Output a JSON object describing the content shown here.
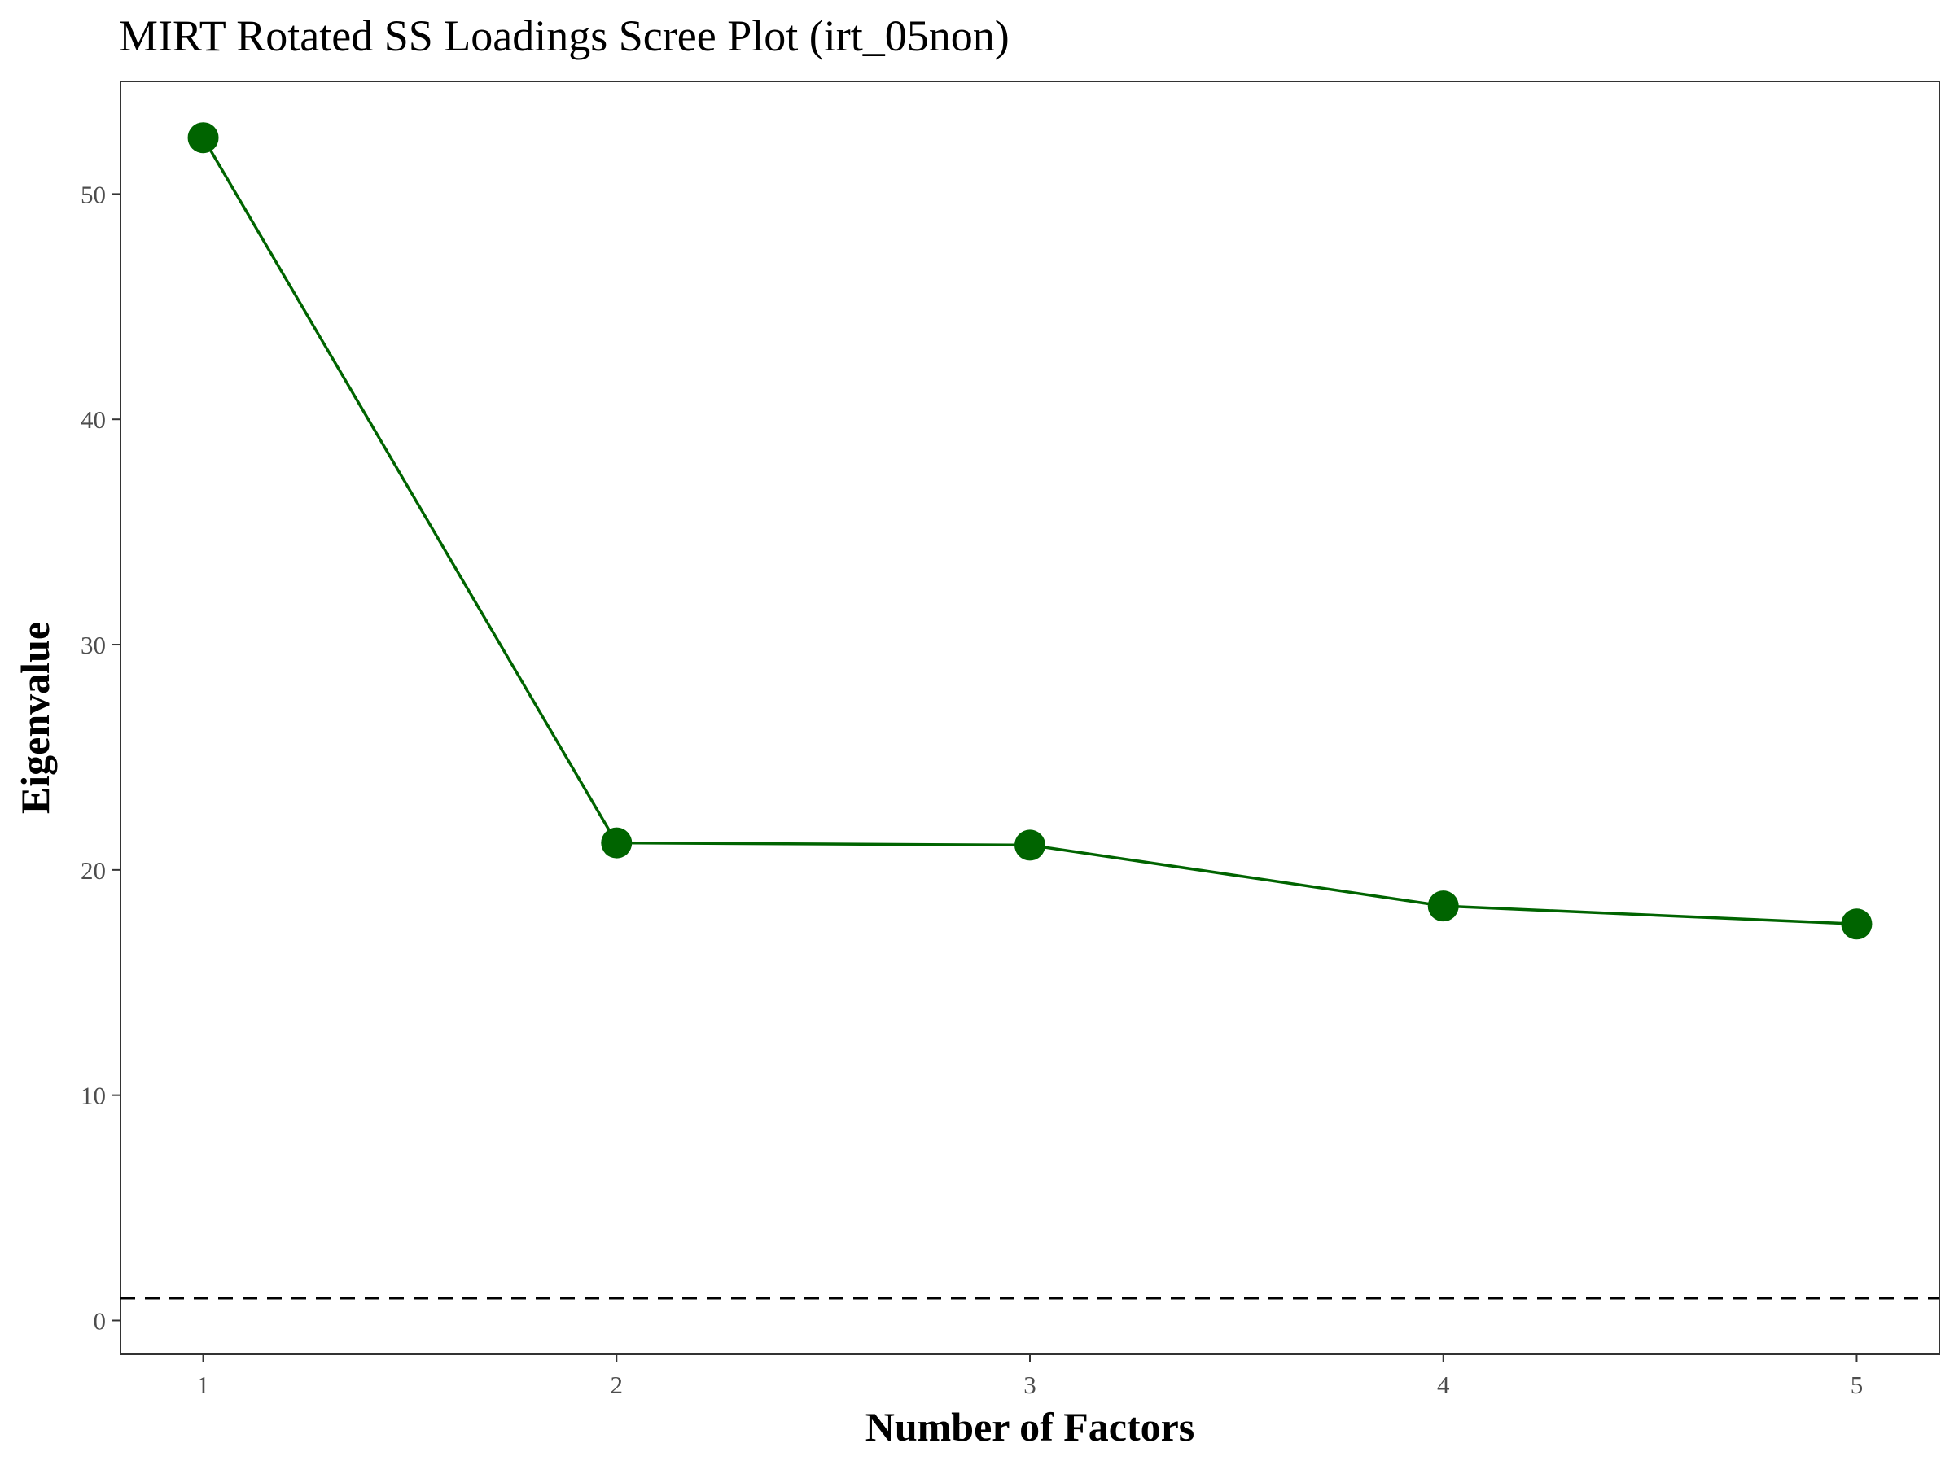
{
  "chart_data": {
    "type": "line",
    "title": "MIRT Rotated SS Loadings Scree Plot (irt_05non)",
    "xlabel": "Number of Factors",
    "ylabel": "Eigenvalue",
    "x": [
      1,
      2,
      3,
      4,
      5
    ],
    "series": [
      {
        "values": [
          52.5,
          21.2,
          21.1,
          18.4,
          17.6
        ]
      }
    ],
    "reference_line": {
      "y": 1,
      "style": "dashed"
    },
    "xlim": [
      0.8,
      5.2
    ],
    "ylim": [
      -1.5,
      55
    ],
    "xticks": [
      "1",
      "2",
      "3",
      "4",
      "5"
    ],
    "yticks": [
      "0",
      "10",
      "20",
      "30",
      "40",
      "50"
    ],
    "grid": false,
    "legend": "none",
    "colors": {
      "series": "#006400",
      "reference": "#000000",
      "frame": "#333333",
      "tick_text": "#4d4d4d"
    }
  }
}
